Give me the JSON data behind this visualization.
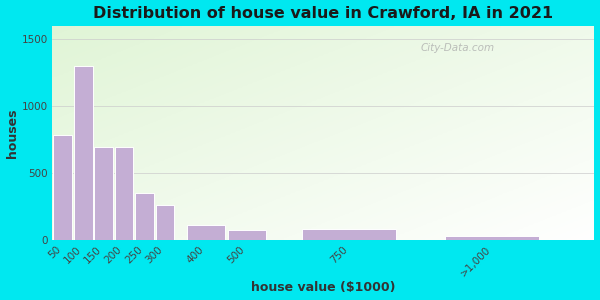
{
  "title": "Distribution of house value in Crawford, IA in 2021",
  "xlabel": "house value ($1000)",
  "ylabel": "houses",
  "bar_labels": [
    "50",
    "100",
    "150",
    "200",
    "250",
    "300",
    "400",
    "500",
    "750",
    ">1,000"
  ],
  "bar_centers": [
    50,
    100,
    150,
    200,
    250,
    300,
    400,
    500,
    750,
    1100
  ],
  "bar_widths": [
    50,
    50,
    50,
    50,
    50,
    50,
    100,
    100,
    250,
    250
  ],
  "bar_values": [
    780,
    1300,
    690,
    690,
    350,
    260,
    110,
    75,
    80,
    30
  ],
  "bar_color": "#c4aed4",
  "bar_edgecolor": "#ffffff",
  "ylim": [
    0,
    1600
  ],
  "yticks": [
    0,
    500,
    1000,
    1500
  ],
  "xlim": [
    25,
    1350
  ],
  "xtick_positions": [
    50,
    100,
    150,
    200,
    250,
    300,
    400,
    500,
    750,
    1100
  ],
  "background_outer": "#00e8f0",
  "background_inner": "#eef7e8",
  "title_fontsize": 11.5,
  "axis_label_fontsize": 9,
  "tick_fontsize": 7.5,
  "watermark_text": "City-Data.com",
  "grid_color": "#cccccc"
}
